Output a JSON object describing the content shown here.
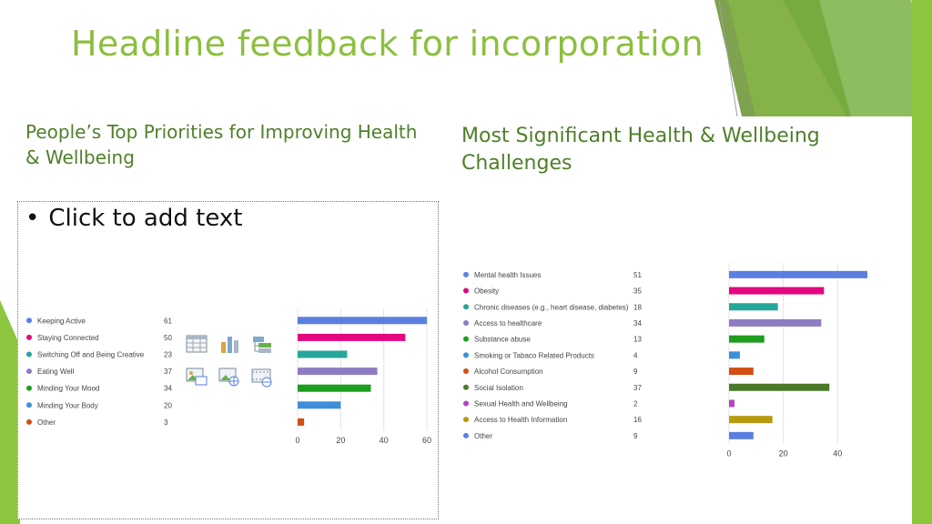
{
  "slide": {
    "title": "Headline feedback for incorporation",
    "left_heading": "People’s Top Priorities for Improving Health & Wellbeing",
    "right_heading": "Most Significant Health & Wellbeing Challenges",
    "placeholder_text": "Click to add text",
    "placeholder_bullet": "•",
    "insert_icons": [
      "insert-table-icon",
      "insert-chart-icon",
      "insert-smartart-icon",
      "insert-picture-icon",
      "insert-online-picture-icon",
      "insert-video-icon"
    ],
    "accent_color": "#8cbf3f",
    "heading_color": "#4f7f2a"
  },
  "chart_data": [
    {
      "type": "bar",
      "orientation": "horizontal",
      "categories": [
        "Keeping Active",
        "Staying Connected",
        "Switching Off and Being Creative",
        "Eating Well",
        "Minding Your Mood",
        "Minding Your Body",
        "Other"
      ],
      "values": [
        61,
        50,
        23,
        37,
        34,
        20,
        3
      ],
      "colors": [
        "#5b7fe0",
        "#e3077f",
        "#26a69a",
        "#8e7cc3",
        "#1e9e1e",
        "#3d8fd9",
        "#d24e12"
      ],
      "xlim": [
        0,
        60
      ],
      "ticks": [
        0,
        20,
        40,
        60
      ],
      "grid": true,
      "legend": "left"
    },
    {
      "type": "bar",
      "orientation": "horizontal",
      "categories": [
        "Mental health Issues",
        "Obesity",
        "Chronic diseases (e.g., heart disease, diabetes)",
        "Access to healthcare",
        "Substance abuse",
        "Smoking or Tabaco Related Products",
        "Alcohol Consumption",
        "Social Isolation",
        "Sexual Health and Wellbeing",
        "Access to Health Information",
        "Other"
      ],
      "values": [
        51,
        35,
        18,
        34,
        13,
        4,
        9,
        37,
        2,
        16,
        9
      ],
      "colors": [
        "#5b7fe0",
        "#e3077f",
        "#26a69a",
        "#8e7cc3",
        "#1e9e1e",
        "#3d8fd9",
        "#d24e12",
        "#4a7a2a",
        "#b544c4",
        "#b89a0e",
        "#5b7fe0"
      ],
      "xlim": [
        0,
        51
      ],
      "ticks": [
        0,
        20,
        40
      ],
      "grid": true,
      "legend": "left"
    }
  ]
}
